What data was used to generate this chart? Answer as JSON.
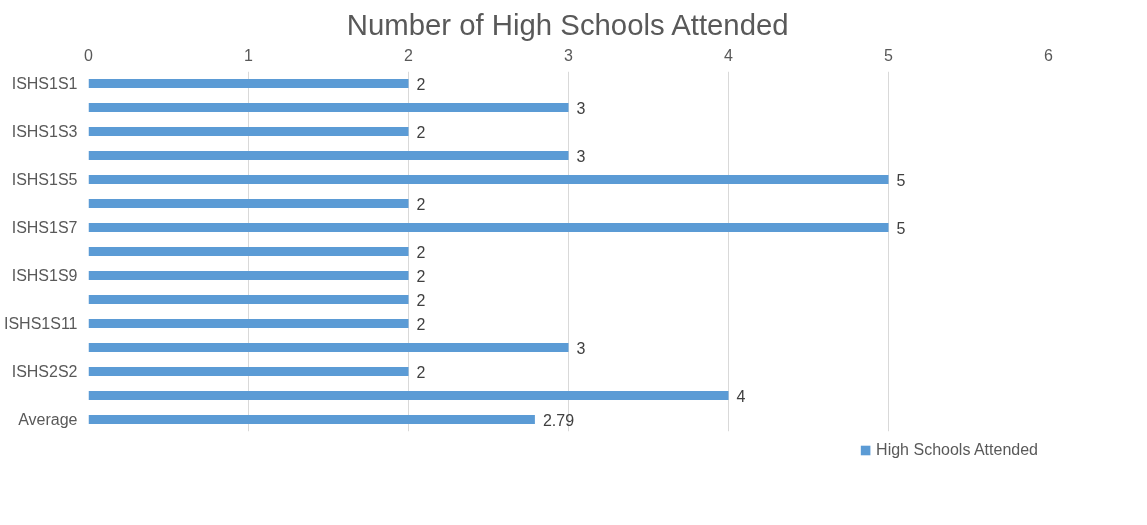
{
  "chart_data": {
    "type": "bar",
    "orientation": "horizontal",
    "title": "Number of High Schools Attended",
    "categories": [
      "ISHS1S1",
      null,
      "ISHS1S3",
      null,
      "ISHS1S5",
      null,
      "ISHS1S7",
      null,
      "ISHS1S9",
      null,
      "ISHS1S11",
      null,
      "ISHS2S2",
      null,
      "Average"
    ],
    "series": [
      {
        "name": "High Schools Attended",
        "color": "#5b9bd5",
        "values": [
          2,
          3,
          2,
          3,
          5,
          2,
          5,
          2,
          2,
          2,
          2,
          3,
          2,
          4,
          2.79
        ]
      }
    ],
    "xlim": [
      0,
      6
    ],
    "xticks": [
      0,
      1,
      2,
      3,
      4,
      5,
      6
    ],
    "grid": "x",
    "legend": "bottom",
    "data_labels": true
  }
}
